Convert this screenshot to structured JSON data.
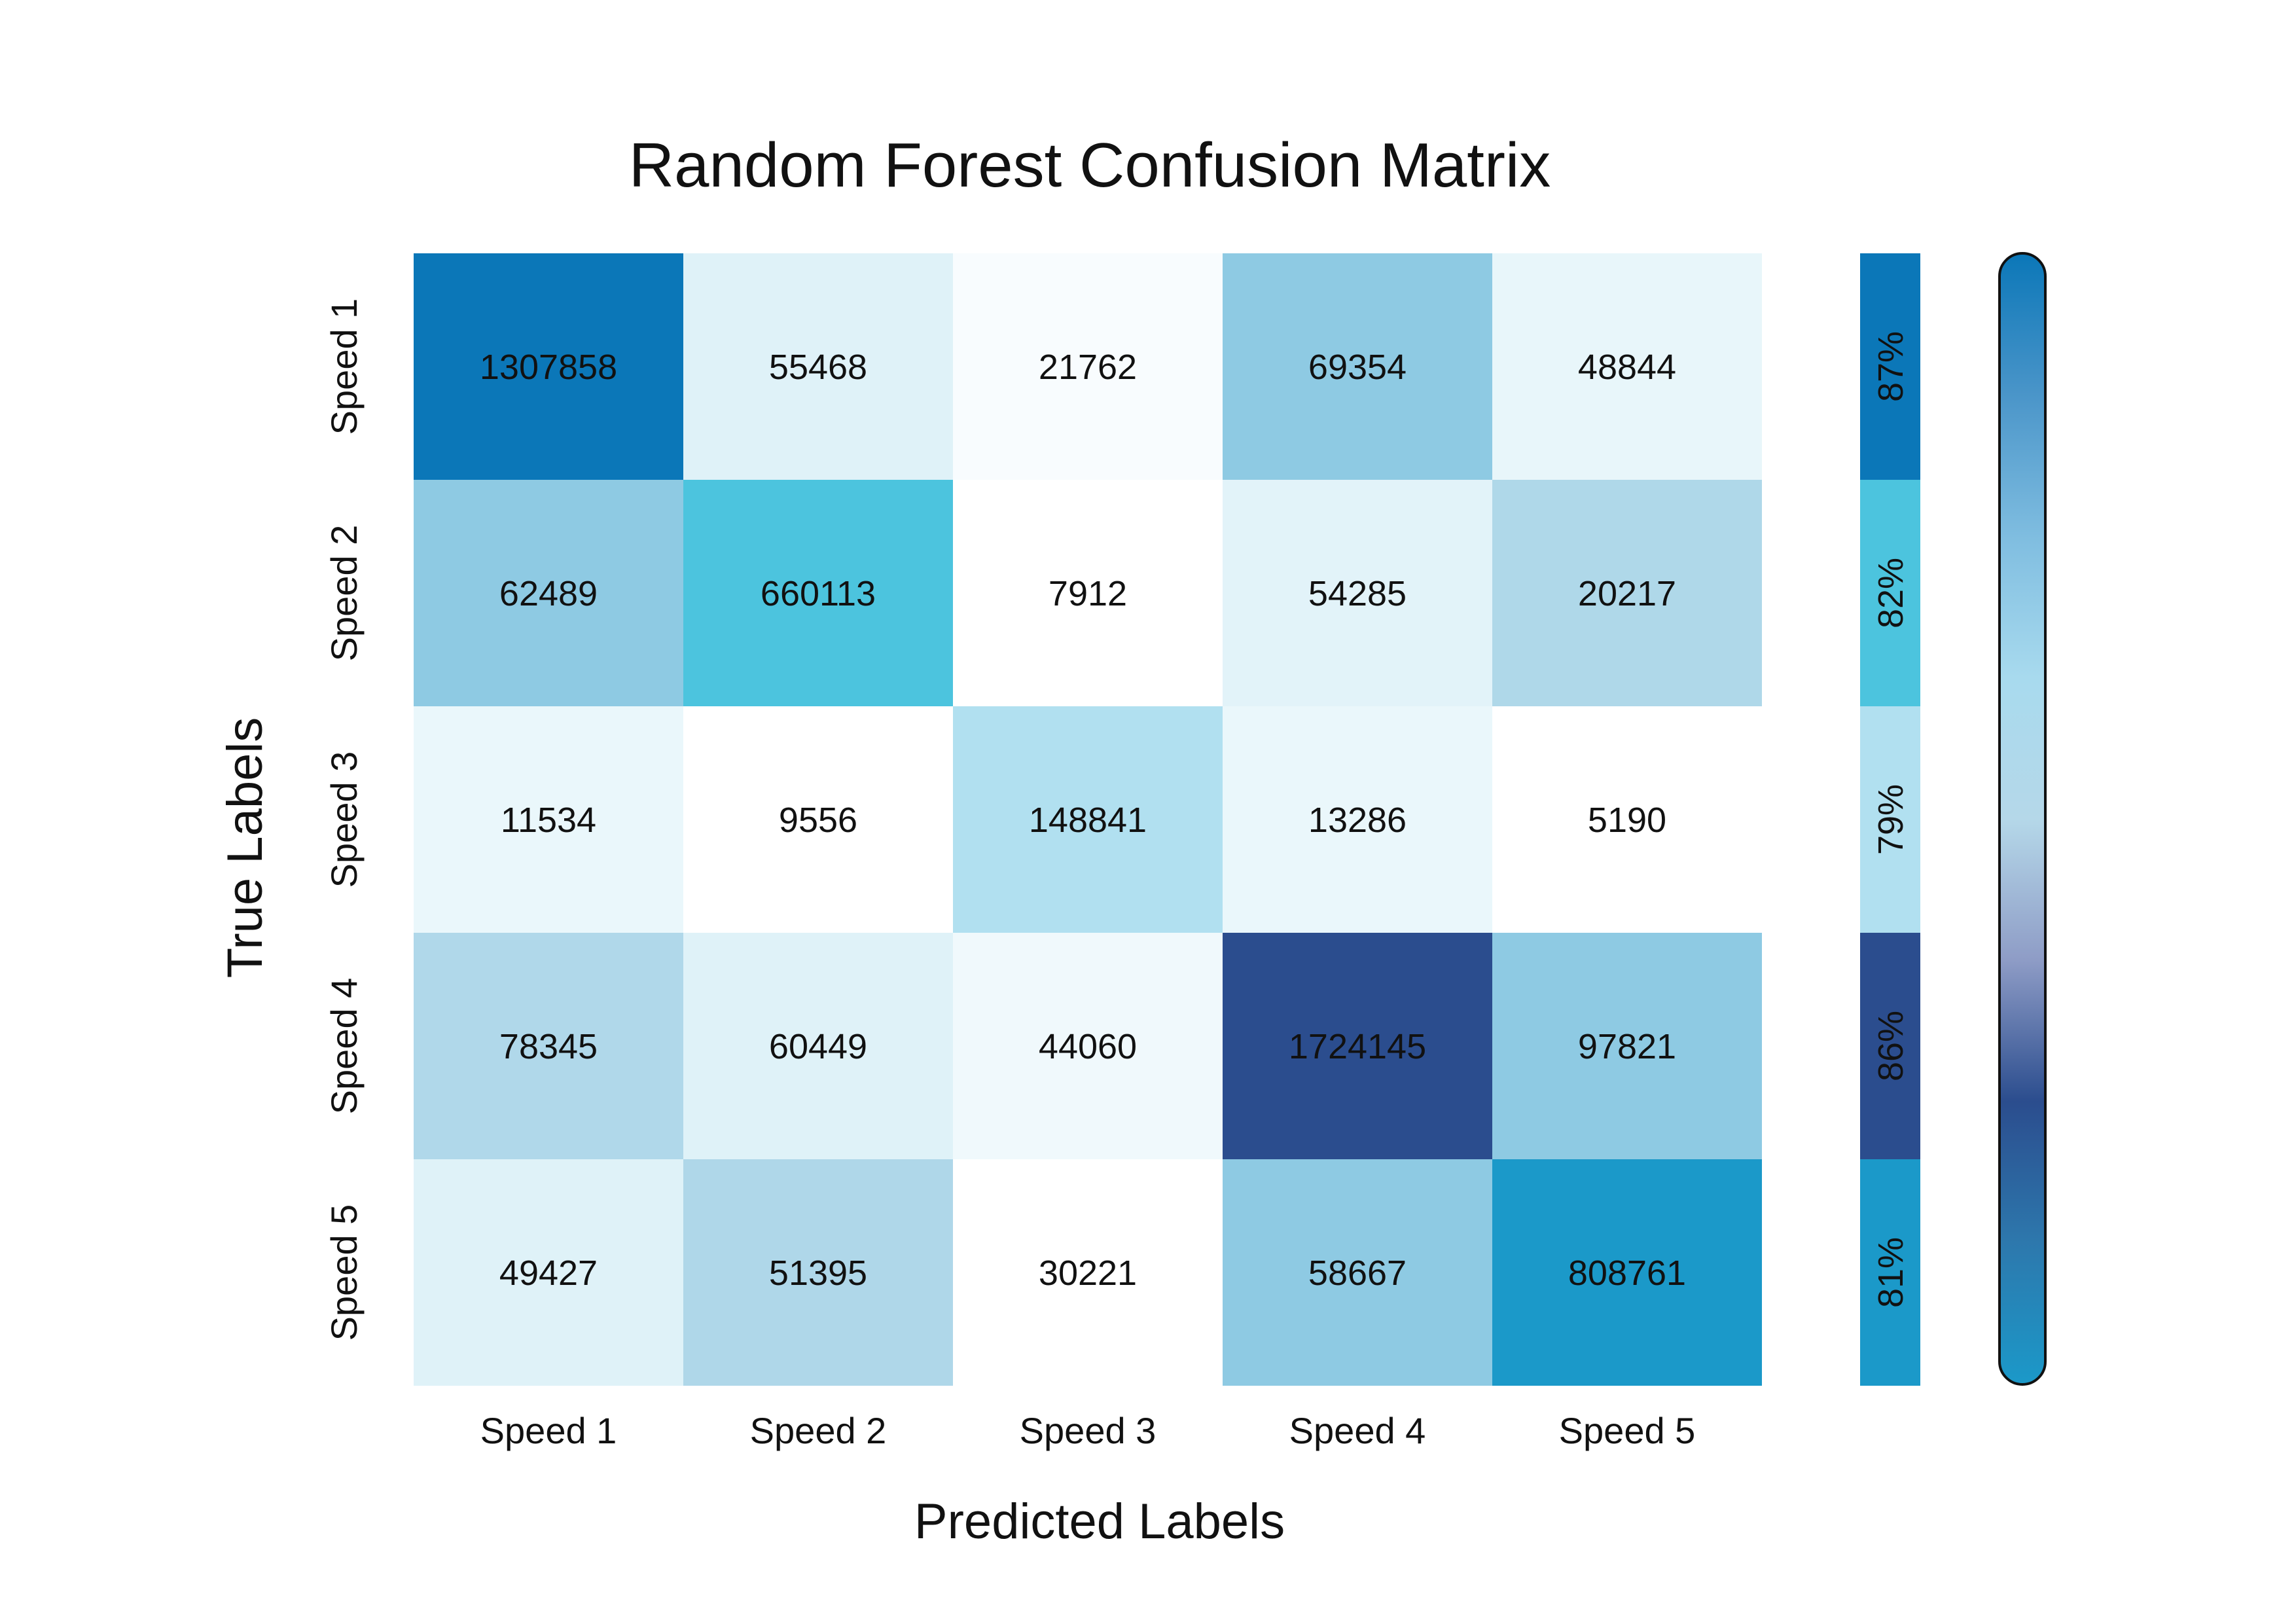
{
  "chart_data": {
    "type": "heatmap",
    "title": "Random Forest Confusion Matrix",
    "xlabel": "Predicted Labels",
    "ylabel": "True Labels",
    "x_categories": [
      "Speed 1",
      "Speed 2",
      "Speed 3",
      "Speed 4",
      "Speed 5"
    ],
    "y_categories": [
      "Speed 1",
      "Speed 2",
      "Speed 3",
      "Speed 4",
      "Speed 5"
    ],
    "values": [
      [
        1307858,
        55468,
        21762,
        69354,
        48844
      ],
      [
        62489,
        660113,
        7912,
        54285,
        20217
      ],
      [
        11534,
        9556,
        148841,
        13286,
        5190
      ],
      [
        78345,
        60449,
        44060,
        1724145,
        97821
      ],
      [
        49427,
        51395,
        30221,
        58667,
        808761
      ]
    ],
    "value_labels": [
      [
        "1307858",
        "55468",
        "21762",
        "69354",
        "48844"
      ],
      [
        "62489",
        "660113",
        "7912",
        "54285",
        "20217"
      ],
      [
        "11534",
        "9556",
        "148841",
        "13286",
        "5190"
      ],
      [
        "78345",
        "60449",
        "44060",
        "1724145",
        "97821"
      ],
      [
        "49427",
        "51395",
        "30221",
        "58667",
        "808761"
      ]
    ],
    "cell_colors": [
      [
        "#0b77b8",
        "#dff2f8",
        "#f8fcfe",
        "#8ecae3",
        "#e8f6fa"
      ],
      [
        "#8ecae3",
        "#4cc4de",
        "#ffffff",
        "#e2f3f9",
        "#afd8e9"
      ],
      [
        "#eaf7fb",
        "#ffffff",
        "#b1e0f0",
        "#eaf7fb",
        "#ffffff"
      ],
      [
        "#b0d8ea",
        "#dff2f8",
        "#f0f9fc",
        "#2b4d8e",
        "#8ecae3"
      ],
      [
        "#dff2f8",
        "#afd7e9",
        "#ffffff",
        "#8ecae3",
        "#1b99c9"
      ]
    ],
    "class_accuracy": {
      "labels": [
        "87%",
        "82%",
        "79%",
        "86%",
        "81%"
      ],
      "values": [
        87,
        82,
        79,
        86,
        81
      ],
      "colors": [
        "#0b77b8",
        "#4cc4de",
        "#b1e0f0",
        "#2b4d8e",
        "#1b99c9"
      ]
    },
    "colorbar": {
      "stops": [
        "#0b77b8",
        "#4a95c9",
        "#7fbde0",
        "#a8daee",
        "#b5d8e9",
        "#8e9cc6",
        "#2b4d8e",
        "#2d78ad",
        "#1b99c9"
      ]
    }
  }
}
